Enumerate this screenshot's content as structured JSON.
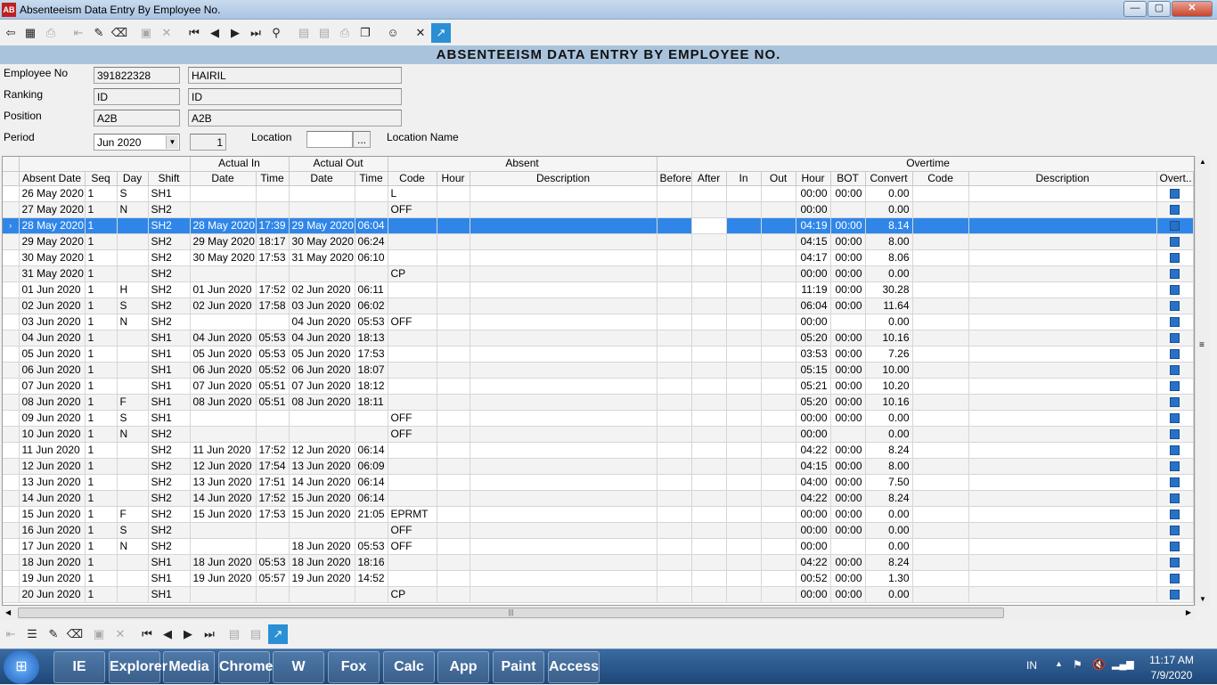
{
  "window": {
    "title": "Absenteeism Data Entry By Employee No.",
    "app_icon": "app-icon",
    "minimize": "—",
    "maximize": "▢",
    "close": "✕"
  },
  "toolbar": {
    "buttons": [
      "exit-icon",
      "calculator-icon",
      "print-icon",
      "import-icon",
      "edit-icon",
      "eraser-icon",
      "save-icon",
      "cancel-icon",
      "first-icon",
      "prev-icon",
      "next-icon",
      "last-icon",
      "find-icon",
      "doc1-icon",
      "doc2-icon",
      "printer-icon",
      "copy-icon",
      "user-icon",
      "close-icon",
      "chart-icon"
    ]
  },
  "banner": "ABSENTEEISM DATA ENTRY BY EMPLOYEE NO.",
  "form": {
    "employee_no_label": "Employee No",
    "employee_no": "391822328",
    "employee_name": "HAIRIL",
    "ranking_label": "Ranking",
    "ranking_code": "ID",
    "ranking_desc": "ID",
    "position_label": "Position",
    "position_code": "A2B",
    "position_desc": "A2B",
    "period_label": "Period",
    "period_value": "Jun 2020",
    "period_num": "1",
    "location_label": "Location",
    "location_value": "",
    "location_btn": "...",
    "location_name_label": "Location Name"
  },
  "grid": {
    "group_headers": {
      "actual_in": "Actual In",
      "actual_out": "Actual Out",
      "absent": "Absent",
      "overtime": "Overtime"
    },
    "columns": [
      "Absent Date",
      "Seq",
      "Day",
      "Shift",
      "Date",
      "Time",
      "Date",
      "Time",
      "Code",
      "Hour",
      "Description",
      "Before",
      "After",
      "In",
      "Out",
      "Hour",
      "BOT",
      "Convert",
      "Code",
      "Description",
      "Overt.."
    ],
    "rows": [
      [
        "26 May 2020",
        "1",
        "S",
        "SH1",
        "",
        "",
        "",
        "",
        "L",
        "",
        "",
        "",
        "",
        "",
        "",
        "00:00",
        "00:00",
        "0.00",
        "",
        ""
      ],
      [
        "27 May 2020",
        "1",
        "N",
        "SH2",
        "",
        "",
        "",
        "",
        "OFF",
        "",
        "",
        "",
        "",
        "",
        "",
        "00:00",
        "",
        "0.00",
        "",
        ""
      ],
      [
        "28 May 2020",
        "1",
        "",
        "SH2",
        "28 May 2020",
        "17:39",
        "29 May 2020",
        "06:04",
        "",
        "",
        "",
        "",
        "",
        "",
        "",
        "04:19",
        "00:00",
        "8.14",
        "",
        ""
      ],
      [
        "29 May 2020",
        "1",
        "",
        "SH2",
        "29 May 2020",
        "18:17",
        "30 May 2020",
        "06:24",
        "",
        "",
        "",
        "",
        "",
        "",
        "",
        "04:15",
        "00:00",
        "8.00",
        "",
        ""
      ],
      [
        "30 May 2020",
        "1",
        "",
        "SH2",
        "30 May 2020",
        "17:53",
        "31 May 2020",
        "06:10",
        "",
        "",
        "",
        "",
        "",
        "",
        "",
        "04:17",
        "00:00",
        "8.06",
        "",
        ""
      ],
      [
        "31 May 2020",
        "1",
        "",
        "SH2",
        "",
        "",
        "",
        "",
        "CP",
        "",
        "",
        "",
        "",
        "",
        "",
        "00:00",
        "00:00",
        "0.00",
        "",
        ""
      ],
      [
        "01 Jun 2020",
        "1",
        "H",
        "SH2",
        "01 Jun 2020",
        "17:52",
        "02 Jun 2020",
        "06:11",
        "",
        "",
        "",
        "",
        "",
        "",
        "",
        "11:19",
        "00:00",
        "30.28",
        "",
        ""
      ],
      [
        "02 Jun 2020",
        "1",
        "S",
        "SH2",
        "02 Jun 2020",
        "17:58",
        "03 Jun 2020",
        "06:02",
        "",
        "",
        "",
        "",
        "",
        "",
        "",
        "06:04",
        "00:00",
        "11.64",
        "",
        ""
      ],
      [
        "03 Jun 2020",
        "1",
        "N",
        "SH2",
        "",
        "",
        "04 Jun 2020",
        "05:53",
        "OFF",
        "",
        "",
        "",
        "",
        "",
        "",
        "00:00",
        "",
        "0.00",
        "",
        ""
      ],
      [
        "04 Jun 2020",
        "1",
        "",
        "SH1",
        "04 Jun 2020",
        "05:53",
        "04 Jun 2020",
        "18:13",
        "",
        "",
        "",
        "",
        "",
        "",
        "",
        "05:20",
        "00:00",
        "10.16",
        "",
        ""
      ],
      [
        "05 Jun 2020",
        "1",
        "",
        "SH1",
        "05 Jun 2020",
        "05:53",
        "05 Jun 2020",
        "17:53",
        "",
        "",
        "",
        "",
        "",
        "",
        "",
        "03:53",
        "00:00",
        "7.26",
        "",
        ""
      ],
      [
        "06 Jun 2020",
        "1",
        "",
        "SH1",
        "06 Jun 2020",
        "05:52",
        "06 Jun 2020",
        "18:07",
        "",
        "",
        "",
        "",
        "",
        "",
        "",
        "05:15",
        "00:00",
        "10.00",
        "",
        ""
      ],
      [
        "07 Jun 2020",
        "1",
        "",
        "SH1",
        "07 Jun 2020",
        "05:51",
        "07 Jun 2020",
        "18:12",
        "",
        "",
        "",
        "",
        "",
        "",
        "",
        "05:21",
        "00:00",
        "10.20",
        "",
        ""
      ],
      [
        "08 Jun 2020",
        "1",
        "F",
        "SH1",
        "08 Jun 2020",
        "05:51",
        "08 Jun 2020",
        "18:11",
        "",
        "",
        "",
        "",
        "",
        "",
        "",
        "05:20",
        "00:00",
        "10.16",
        "",
        ""
      ],
      [
        "09 Jun 2020",
        "1",
        "S",
        "SH1",
        "",
        "",
        "",
        "",
        "OFF",
        "",
        "",
        "",
        "",
        "",
        "",
        "00:00",
        "00:00",
        "0.00",
        "",
        ""
      ],
      [
        "10 Jun 2020",
        "1",
        "N",
        "SH2",
        "",
        "",
        "",
        "",
        "OFF",
        "",
        "",
        "",
        "",
        "",
        "",
        "00:00",
        "",
        "0.00",
        "",
        ""
      ],
      [
        "11 Jun 2020",
        "1",
        "",
        "SH2",
        "11 Jun 2020",
        "17:52",
        "12 Jun 2020",
        "06:14",
        "",
        "",
        "",
        "",
        "",
        "",
        "",
        "04:22",
        "00:00",
        "8.24",
        "",
        ""
      ],
      [
        "12 Jun 2020",
        "1",
        "",
        "SH2",
        "12 Jun 2020",
        "17:54",
        "13 Jun 2020",
        "06:09",
        "",
        "",
        "",
        "",
        "",
        "",
        "",
        "04:15",
        "00:00",
        "8.00",
        "",
        ""
      ],
      [
        "13 Jun 2020",
        "1",
        "",
        "SH2",
        "13 Jun 2020",
        "17:51",
        "14 Jun 2020",
        "06:14",
        "",
        "",
        "",
        "",
        "",
        "",
        "",
        "04:00",
        "00:00",
        "7.50",
        "",
        ""
      ],
      [
        "14 Jun 2020",
        "1",
        "",
        "SH2",
        "14 Jun 2020",
        "17:52",
        "15 Jun 2020",
        "06:14",
        "",
        "",
        "",
        "",
        "",
        "",
        "",
        "04:22",
        "00:00",
        "8.24",
        "",
        ""
      ],
      [
        "15 Jun 2020",
        "1",
        "F",
        "SH2",
        "15 Jun 2020",
        "17:53",
        "15 Jun 2020",
        "21:05",
        "EPRMT",
        "",
        "",
        "",
        "",
        "",
        "",
        "00:00",
        "00:00",
        "0.00",
        "",
        ""
      ],
      [
        "16 Jun 2020",
        "1",
        "S",
        "SH2",
        "",
        "",
        "",
        "",
        "OFF",
        "",
        "",
        "",
        "",
        "",
        "",
        "00:00",
        "00:00",
        "0.00",
        "",
        ""
      ],
      [
        "17 Jun 2020",
        "1",
        "N",
        "SH2",
        "",
        "",
        "18 Jun 2020",
        "05:53",
        "OFF",
        "",
        "",
        "",
        "",
        "",
        "",
        "00:00",
        "",
        "0.00",
        "",
        ""
      ],
      [
        "18 Jun 2020",
        "1",
        "",
        "SH1",
        "18 Jun 2020",
        "05:53",
        "18 Jun 2020",
        "18:16",
        "",
        "",
        "",
        "",
        "",
        "",
        "",
        "04:22",
        "00:00",
        "8.24",
        "",
        ""
      ],
      [
        "19 Jun 2020",
        "1",
        "",
        "SH1",
        "19 Jun 2020",
        "05:57",
        "19 Jun 2020",
        "14:52",
        "",
        "",
        "",
        "",
        "",
        "",
        "",
        "00:52",
        "00:00",
        "1.30",
        "",
        ""
      ],
      [
        "20 Jun 2020",
        "1",
        "",
        "SH1",
        "",
        "",
        "",
        "",
        "CP",
        "",
        "",
        "",
        "",
        "",
        "",
        "00:00",
        "00:00",
        "0.00",
        "",
        ""
      ]
    ],
    "current_row_index": 2,
    "current_row_marker": "›"
  },
  "taskbar": {
    "apps": [
      "IE",
      "Explorer",
      "Media",
      "Chrome",
      "W",
      "Fox",
      "Calc",
      "App",
      "Paint",
      "Access"
    ],
    "language": "IN",
    "time": "11:17 AM",
    "date": "7/9/2020"
  }
}
